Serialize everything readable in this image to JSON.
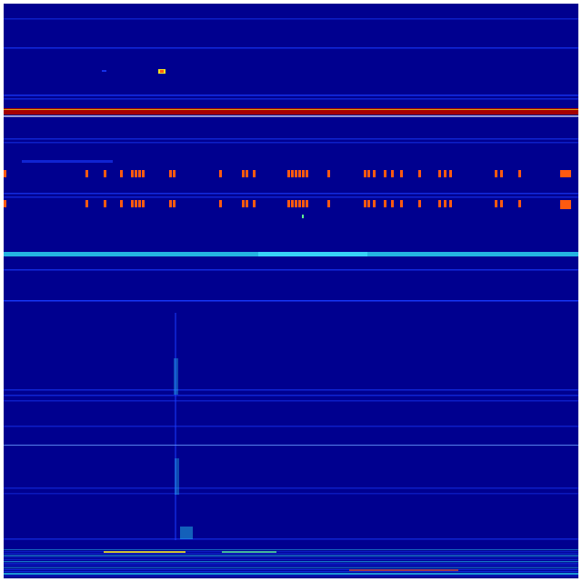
{
  "colors": {
    "background": "#00008f",
    "faint_line": "#0a1fd8",
    "line": "#1a3cff",
    "cyan": "#2ad4f0",
    "red_band": "#a40000",
    "yellow": "#f0e020",
    "orange": "#ff5a10",
    "green": "#60ff90"
  }
}
